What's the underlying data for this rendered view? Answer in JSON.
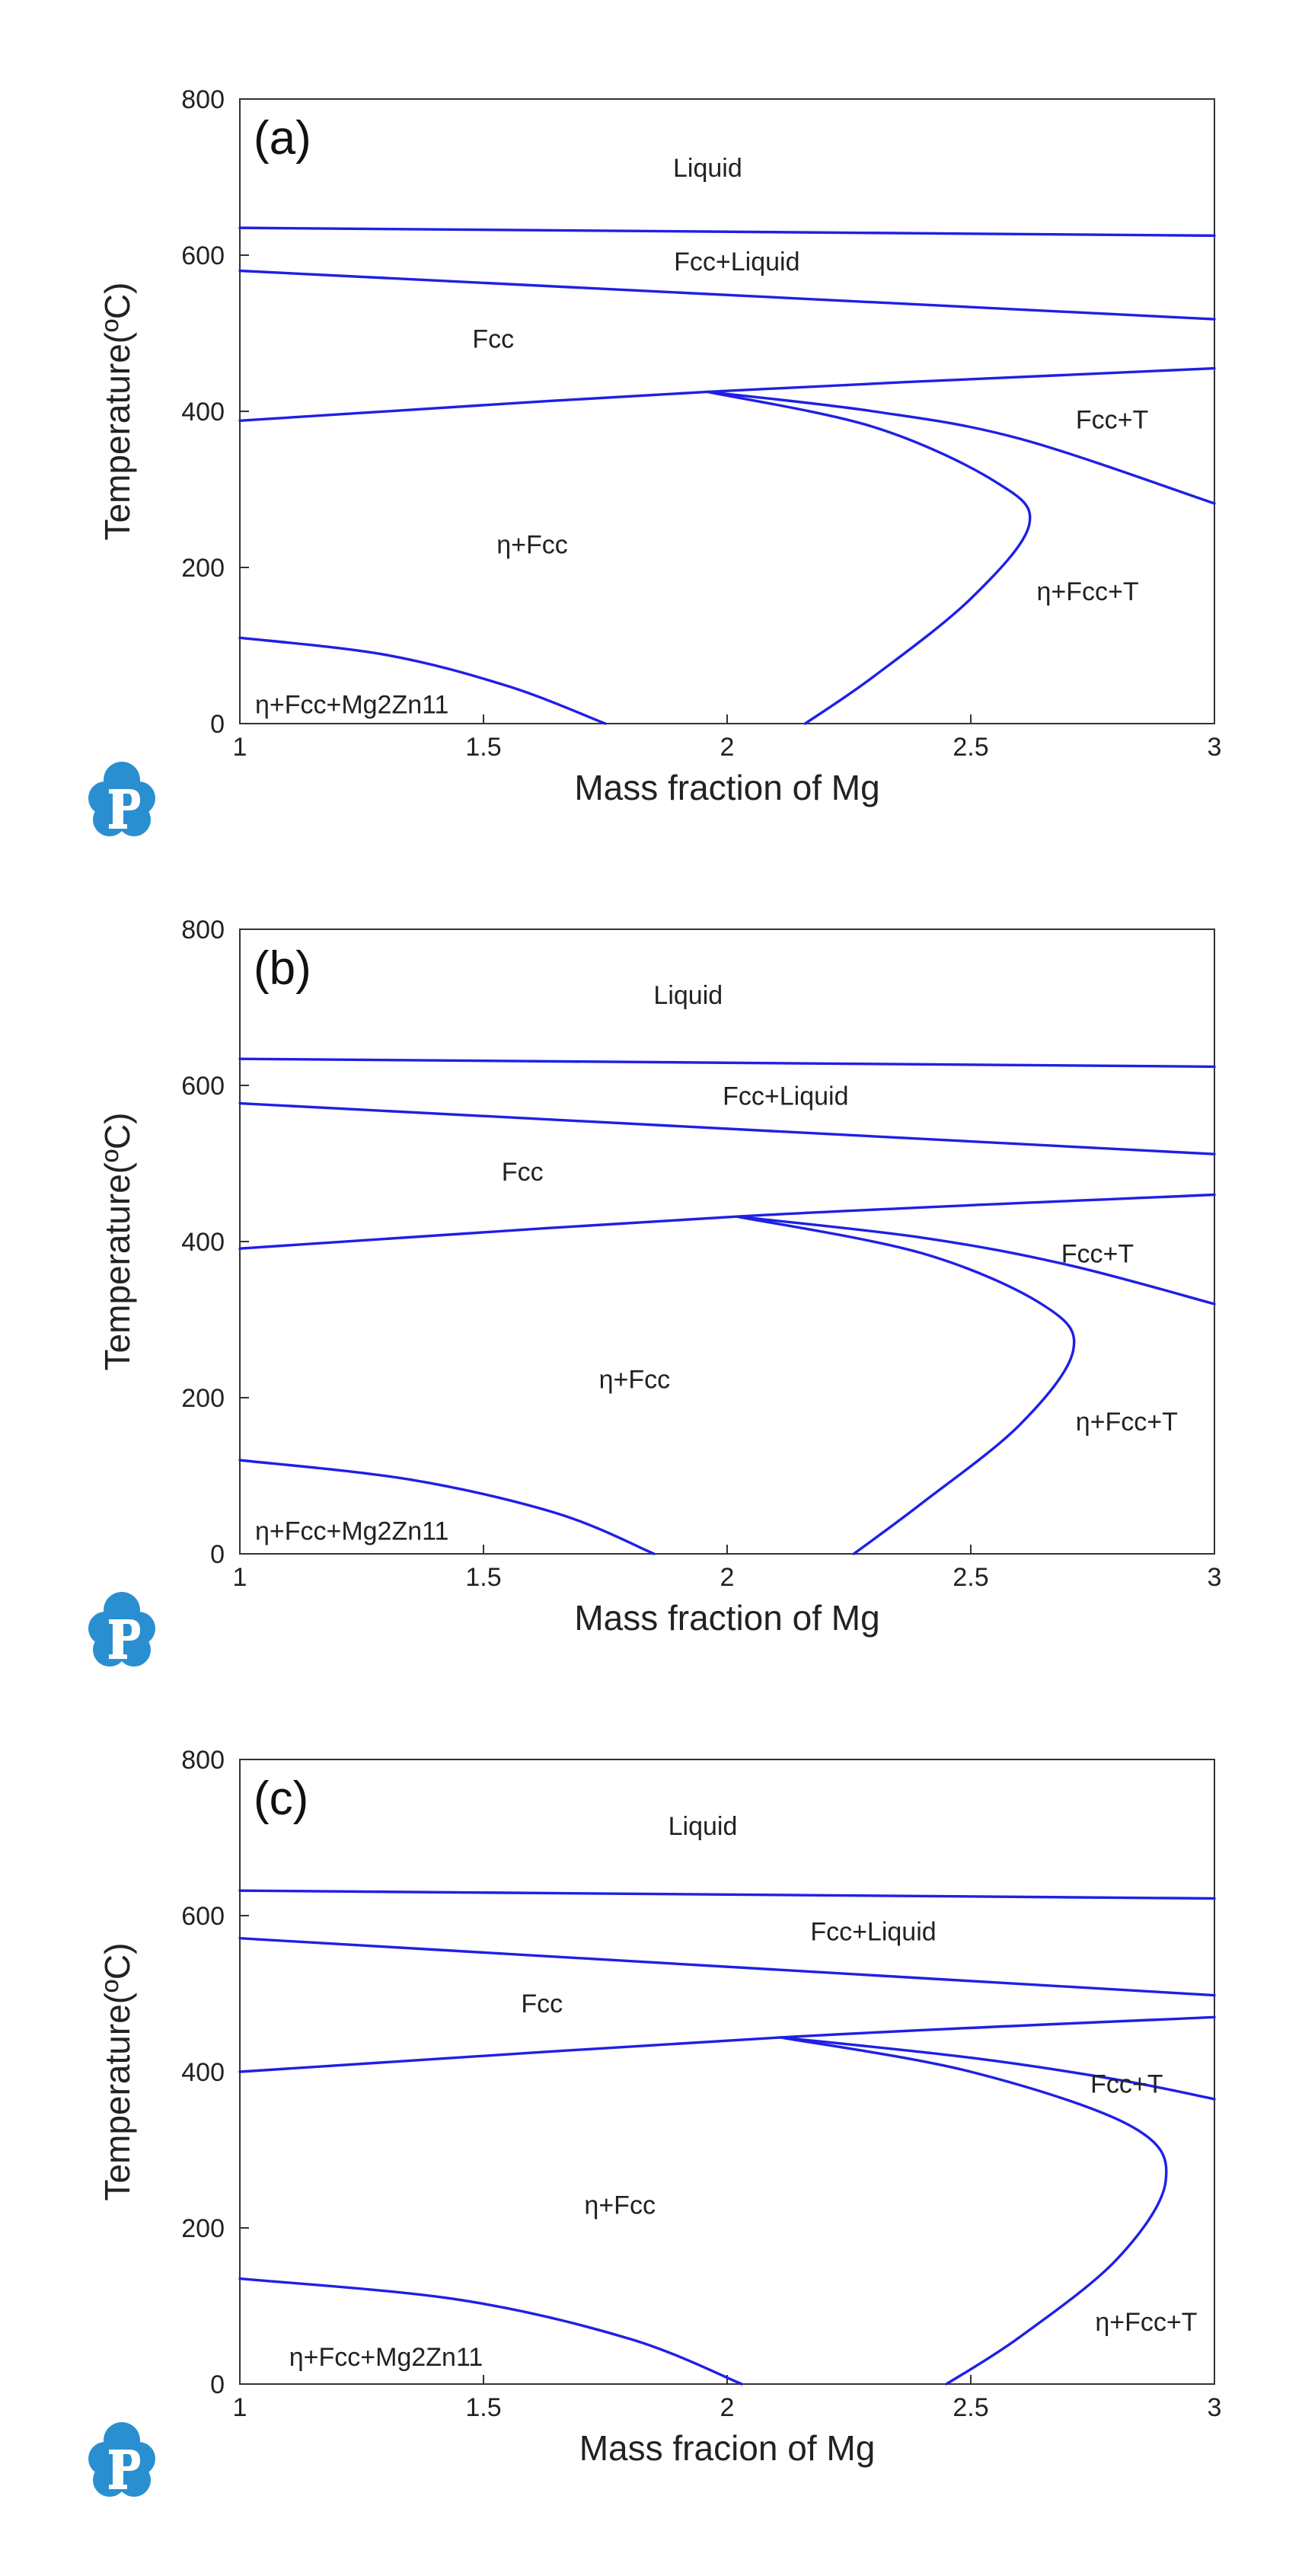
{
  "chart_data": [
    {
      "type": "line",
      "panel": "(a)",
      "xlabel": "Mass fraction of Mg",
      "ylabel": "Temperature(ºC)",
      "xlim": [
        1,
        3
      ],
      "ylim": [
        0,
        800
      ],
      "xticks": [
        "1",
        "1.5",
        "2",
        "2.5",
        "3"
      ],
      "yticks": [
        "0",
        "200",
        "400",
        "600",
        "800"
      ],
      "colors": {
        "boundary": "#1f1fe6"
      },
      "series": [
        {
          "name": "liquidus",
          "x": [
            1,
            3
          ],
          "y": [
            635,
            625
          ]
        },
        {
          "name": "solidus",
          "x": [
            1,
            3
          ],
          "y": [
            580,
            518
          ]
        },
        {
          "name": "fcc solvus",
          "x": [
            1,
            1.96,
            3
          ],
          "y": [
            388,
            425,
            455
          ]
        },
        {
          "name": "T solvus",
          "x": [
            1.96,
            2.3,
            2.6,
            3
          ],
          "y": [
            425,
            400,
            365,
            282
          ]
        },
        {
          "name": "eta + Fcc / eta + Fcc + T boundary",
          "x": [
            1.96,
            2.3,
            2.55,
            2.62,
            2.5,
            2.3,
            2.16
          ],
          "y": [
            425,
            380,
            310,
            255,
            160,
            60,
            0
          ]
        },
        {
          "name": "Mg2Zn11 solvus",
          "x": [
            1,
            1.3,
            1.55,
            1.75
          ],
          "y": [
            110,
            88,
            48,
            0
          ]
        }
      ],
      "labels": [
        {
          "text": "Liquid",
          "x": 1.96,
          "y": 712
        },
        {
          "text": "Fcc+Liquid",
          "x": 2.02,
          "y": 592
        },
        {
          "text": "Fcc",
          "x": 1.52,
          "y": 493
        },
        {
          "text": "Fcc+T",
          "x": 2.79,
          "y": 390
        },
        {
          "text": "η+Fcc",
          "x": 1.6,
          "y": 230
        },
        {
          "text": "η+Fcc+T",
          "x": 2.74,
          "y": 170
        },
        {
          "text": "η+Fcc+Mg2Zn11",
          "x": 1.23,
          "y": 25
        }
      ]
    },
    {
      "type": "line",
      "panel": "(b)",
      "xlabel": "Mass fraction of Mg",
      "ylabel": "Temperature(ºC)",
      "xlim": [
        1,
        3
      ],
      "ylim": [
        0,
        800
      ],
      "xticks": [
        "1",
        "1.5",
        "2",
        "2.5",
        "3"
      ],
      "yticks": [
        "0",
        "200",
        "400",
        "600",
        "800"
      ],
      "colors": {
        "boundary": "#1f1fe6"
      },
      "series": [
        {
          "name": "liquidus",
          "x": [
            1,
            3
          ],
          "y": [
            634,
            624
          ]
        },
        {
          "name": "solidus",
          "x": [
            1,
            3
          ],
          "y": [
            577,
            512
          ]
        },
        {
          "name": "fcc solvus",
          "x": [
            1,
            2.02,
            3
          ],
          "y": [
            391,
            432,
            460
          ]
        },
        {
          "name": "T solvus",
          "x": [
            2.02,
            2.4,
            2.7,
            3
          ],
          "y": [
            432,
            405,
            370,
            320
          ]
        },
        {
          "name": "eta + Fcc / eta + Fcc + T boundary",
          "x": [
            2.02,
            2.4,
            2.65,
            2.71,
            2.6,
            2.4,
            2.26
          ],
          "y": [
            432,
            385,
            318,
            260,
            165,
            65,
            0
          ]
        },
        {
          "name": "Mg2Zn11 solvus",
          "x": [
            1,
            1.35,
            1.65,
            1.85
          ],
          "y": [
            120,
            95,
            52,
            0
          ]
        }
      ],
      "labels": [
        {
          "text": "Liquid",
          "x": 1.92,
          "y": 716
        },
        {
          "text": "Fcc+Liquid",
          "x": 2.12,
          "y": 587
        },
        {
          "text": "Fcc",
          "x": 1.58,
          "y": 490
        },
        {
          "text": "Fcc+T",
          "x": 2.76,
          "y": 385
        },
        {
          "text": "η+Fcc",
          "x": 1.81,
          "y": 224
        },
        {
          "text": "η+Fcc+T",
          "x": 2.82,
          "y": 170
        },
        {
          "text": "η+Fcc+Mg2Zn11",
          "x": 1.23,
          "y": 30
        }
      ]
    },
    {
      "type": "line",
      "panel": "(c)",
      "xlabel": "Mass fracion of Mg",
      "ylabel": "Temperature(ºC)",
      "xlim": [
        1,
        3
      ],
      "ylim": [
        0,
        800
      ],
      "xticks": [
        "1",
        "1.5",
        "2",
        "2.5",
        "3"
      ],
      "yticks": [
        "0",
        "200",
        "400",
        "600",
        "800"
      ],
      "colors": {
        "boundary": "#1f1fe6"
      },
      "series": [
        {
          "name": "liquidus",
          "x": [
            1,
            3
          ],
          "y": [
            632,
            622
          ]
        },
        {
          "name": "solidus",
          "x": [
            1,
            3
          ],
          "y": [
            571,
            498
          ]
        },
        {
          "name": "fcc solvus",
          "x": [
            1,
            2.11,
            3
          ],
          "y": [
            400,
            444,
            470
          ]
        },
        {
          "name": "T solvus",
          "x": [
            2.11,
            2.5,
            2.8,
            3
          ],
          "y": [
            444,
            418,
            390,
            365
          ]
        },
        {
          "name": "eta + Fcc / eta + Fcc + T boundary",
          "x": [
            2.11,
            2.5,
            2.83,
            2.9,
            2.8,
            2.6,
            2.45
          ],
          "y": [
            444,
            400,
            330,
            260,
            160,
            60,
            0
          ]
        },
        {
          "name": "Mg2Zn11 solvus",
          "x": [
            1,
            1.45,
            1.8,
            2.03
          ],
          "y": [
            135,
            108,
            58,
            0
          ]
        }
      ],
      "labels": [
        {
          "text": "Liquid",
          "x": 1.95,
          "y": 715
        },
        {
          "text": "Fcc+Liquid",
          "x": 2.3,
          "y": 580
        },
        {
          "text": "Fcc",
          "x": 1.62,
          "y": 488
        },
        {
          "text": "Fcc+T",
          "x": 2.82,
          "y": 385
        },
        {
          "text": "η+Fcc",
          "x": 1.78,
          "y": 230
        },
        {
          "text": "η+Fcc+T",
          "x": 2.86,
          "y": 80
        },
        {
          "text": "η+Fcc+Mg2Zn11",
          "x": 1.3,
          "y": 35
        }
      ]
    }
  ]
}
